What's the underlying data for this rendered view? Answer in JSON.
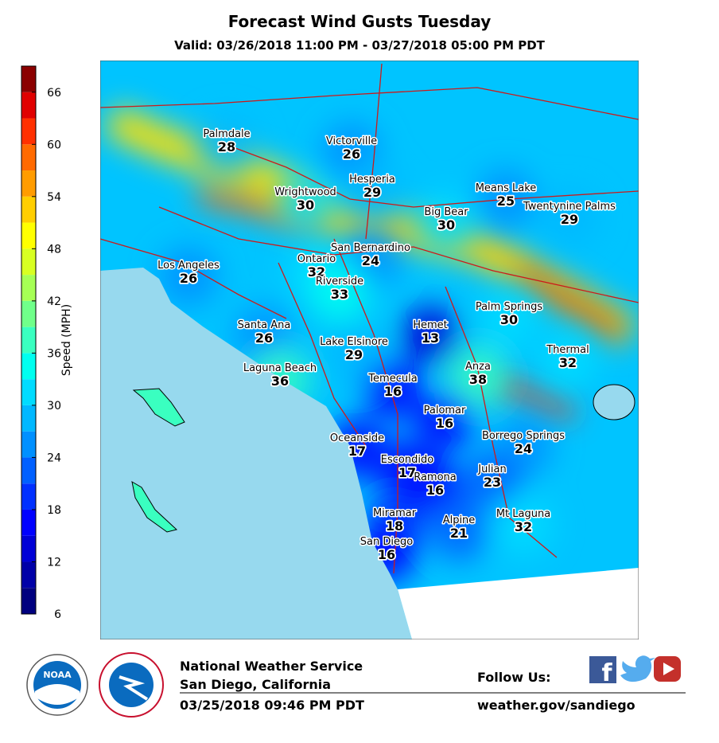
{
  "title": "Forecast Wind Gusts Tuesday",
  "subtitle": "Valid: 03/26/2018 11:00 PM - 03/27/2018 05:00 PM PDT",
  "colorbar": {
    "label": "Speed (MPH)",
    "lim": [
      6,
      69
    ],
    "ticks": [
      6,
      12,
      18,
      24,
      30,
      36,
      42,
      48,
      54,
      60,
      66
    ],
    "colors": [
      "#00007f",
      "#0000a8",
      "#0000d6",
      "#0000ff",
      "#0030ff",
      "#0060ff",
      "#0090ff",
      "#00b8ff",
      "#00dcff",
      "#00fff0",
      "#3affc0",
      "#70ff8a",
      "#a6ff55",
      "#d8ff22",
      "#ffff00",
      "#ffce00",
      "#ff9c00",
      "#ff6a00",
      "#ff3000",
      "#e00000",
      "#8b0000"
    ]
  },
  "cities": [
    {
      "name": "Palmdale",
      "value": 28
    },
    {
      "name": "Victorville",
      "value": 26
    },
    {
      "name": "Hesperia",
      "value": 29
    },
    {
      "name": "Wrightwood",
      "value": 30
    },
    {
      "name": "Means Lake",
      "value": 25
    },
    {
      "name": "Twentynine Palms",
      "value": 29
    },
    {
      "name": "Big Bear",
      "value": 30
    },
    {
      "name": "San Bernardino",
      "value": 24
    },
    {
      "name": "Ontario",
      "value": 32
    },
    {
      "name": "Los Angeles",
      "value": 26
    },
    {
      "name": "Riverside",
      "value": 33
    },
    {
      "name": "Palm Springs",
      "value": 30
    },
    {
      "name": "Santa Ana",
      "value": 26
    },
    {
      "name": "Hemet",
      "value": 13
    },
    {
      "name": "Lake Elsinore",
      "value": 29
    },
    {
      "name": "Thermal",
      "value": 32
    },
    {
      "name": "Laguna Beach",
      "value": 36
    },
    {
      "name": "Anza",
      "value": 38
    },
    {
      "name": "Temecula",
      "value": 16
    },
    {
      "name": "Palomar",
      "value": 16
    },
    {
      "name": "Oceanside",
      "value": 17
    },
    {
      "name": "Borrego Springs",
      "value": 24
    },
    {
      "name": "Escondido",
      "value": 17
    },
    {
      "name": "Julian",
      "value": 23
    },
    {
      "name": "Ramona",
      "value": 16
    },
    {
      "name": "Miramar",
      "value": 18
    },
    {
      "name": "Alpine",
      "value": 21
    },
    {
      "name": "Mt Laguna",
      "value": 32
    },
    {
      "name": "San Diego",
      "value": 16
    }
  ],
  "footer": {
    "office": "National Weather Service",
    "location": "San Diego, California",
    "issued": "03/25/2018 09:46 PM PDT",
    "follow": "Follow Us:",
    "url": "weather.gov/sandiego",
    "noaa": "NOAA"
  }
}
